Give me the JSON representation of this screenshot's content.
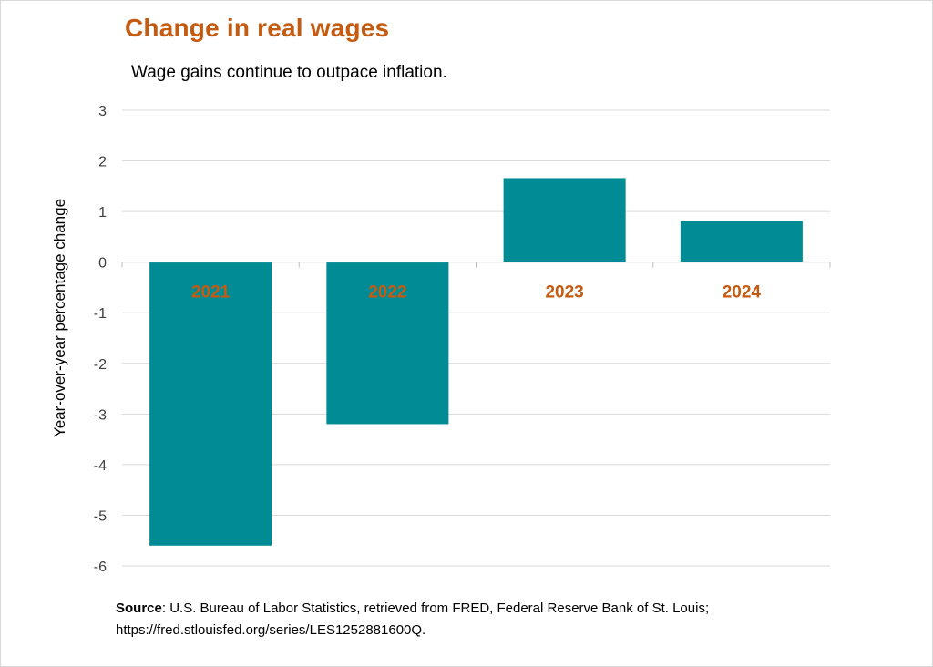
{
  "title": "Change in real wages",
  "subtitle": "Wage gains continue to outpace inflation.",
  "source": {
    "label": "Source",
    "line1": ": U.S. Bureau of Labor Statistics, retrieved from FRED, Federal Reserve Bank of St. Louis;",
    "line2": "https://fred.stlouisfed.org/series/LES1252881600Q."
  },
  "colors": {
    "bar": "#008b95",
    "title": "#c55a11",
    "category_label": "#c55a11",
    "grid": "#d9d9d9"
  },
  "chart_data": {
    "type": "bar",
    "title": "Change in real wages",
    "subtitle": "Wage gains continue to outpace inflation.",
    "xlabel": "",
    "ylabel": "Year-over-year percentage change",
    "categories": [
      "2021",
      "2022",
      "2023",
      "2024"
    ],
    "series": [
      {
        "values": [
          -5.6,
          -3.2,
          1.66,
          0.81
        ]
      }
    ],
    "ylim": [
      -6,
      3
    ],
    "yticks": [
      3,
      2,
      1,
      0,
      -1,
      -2,
      -3,
      -4,
      -5,
      -6
    ],
    "grid": true,
    "legend": "none",
    "category_labels_position": "below zero line"
  }
}
